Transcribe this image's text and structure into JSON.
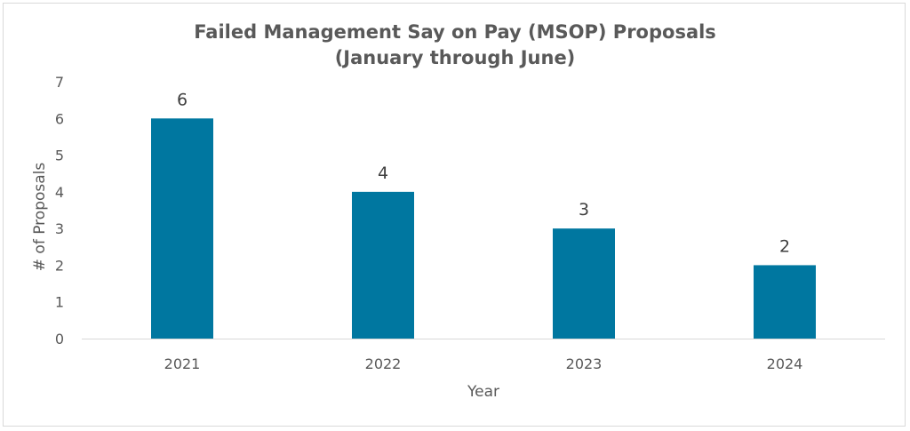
{
  "chart_data": {
    "type": "bar",
    "title": "Failed Management Say on Pay (MSOP) Proposals",
    "subtitle": "(January through June)",
    "xlabel": "Year",
    "ylabel": "# of Proposals",
    "categories": [
      "2021",
      "2022",
      "2023",
      "2024"
    ],
    "values": [
      6,
      4,
      3,
      2
    ],
    "ylim": [
      0,
      7
    ],
    "yticks": [
      "0",
      "1",
      "2",
      "3",
      "4",
      "5",
      "6",
      "7"
    ],
    "data_labels": [
      "6",
      "4",
      "3",
      "2"
    ],
    "bar_color": "#0077A0",
    "grid": false,
    "legend": "none"
  }
}
